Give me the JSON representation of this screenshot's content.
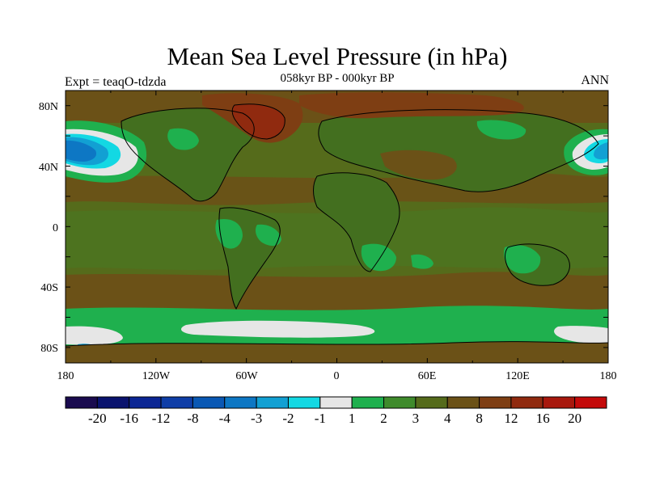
{
  "title": "Mean Sea Level Pressure (in hPa)",
  "subtitle": "058kyr BP - 000kyr BP",
  "experiment_label": "Expt = teaqO-tdzda",
  "season_label": "ANN",
  "axes": {
    "lat_labels": [
      "80N",
      "40N",
      "0",
      "40S",
      "80S"
    ],
    "lon_labels": [
      "180",
      "120W",
      "60W",
      "0",
      "60E",
      "120E",
      "180"
    ]
  },
  "colorbar": {
    "labels": [
      "-20",
      "-16",
      "-12",
      "-8",
      "-4",
      "-3",
      "-2",
      "-1",
      "1",
      "2",
      "3",
      "4",
      "8",
      "12",
      "16",
      "20"
    ],
    "colors": [
      "#1a0b4f",
      "#0a136e",
      "#0b2694",
      "#0f3ea7",
      "#0a58b4",
      "#0d77c4",
      "#12a0d3",
      "#13d8e3",
      "#e6e6e6",
      "#1fb04e",
      "#3f8b2c",
      "#556b1b",
      "#6b5117",
      "#7e3e13",
      "#902a0f",
      "#a8180d",
      "#c40a0a"
    ]
  },
  "colors": {
    "ocean_base": "#556b1b",
    "land_base": "#436f1f",
    "high_anomaly": "#7e3e13",
    "strong_high": "#902a0f",
    "positive_small": "#1fb04e",
    "near_zero": "#e6e6e6",
    "negative": "#0d77c4"
  }
}
